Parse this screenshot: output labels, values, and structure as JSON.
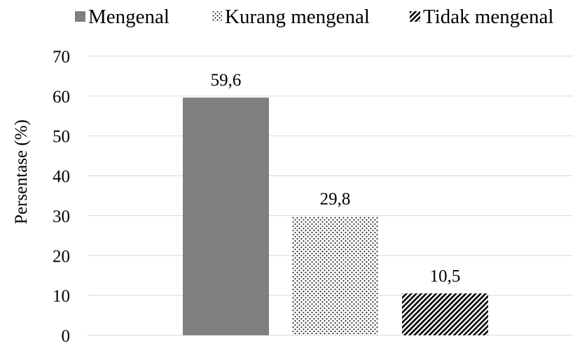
{
  "chart_data": {
    "type": "bar",
    "title": "",
    "xlabel": "",
    "ylabel": "Persentase (%)",
    "ylim": [
      0,
      70
    ],
    "yticks": [
      0,
      10,
      20,
      30,
      40,
      50,
      60,
      70
    ],
    "grid": true,
    "legend_position": "top",
    "series": [
      {
        "name": "Mengenal",
        "value": 59.6,
        "label": "59,6",
        "pattern": "solid",
        "color": "#7f7f7f"
      },
      {
        "name": "Kurang mengenal",
        "value": 29.8,
        "label": "29,8",
        "pattern": "dots",
        "color": "#000000"
      },
      {
        "name": "Tidak mengenal",
        "value": 10.5,
        "label": "10,5",
        "pattern": "diagonal-hatch",
        "color": "#000000"
      }
    ]
  }
}
